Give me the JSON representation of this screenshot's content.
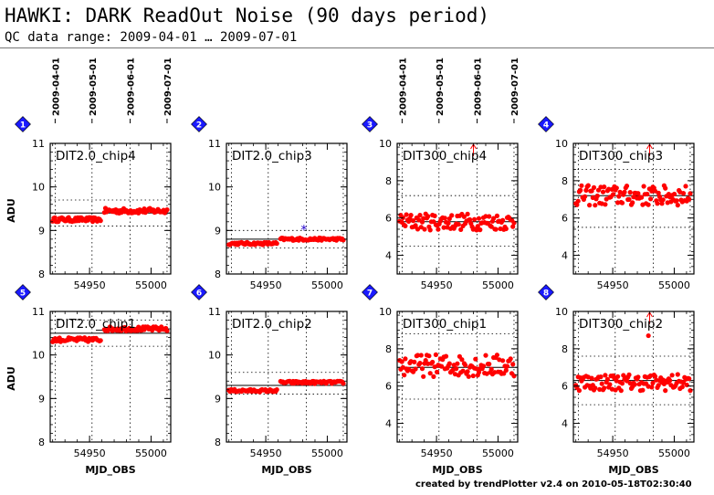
{
  "header": {
    "title": "HAWKI: DARK ReadOut Noise (90 days period)",
    "subtitle": "QC data range: 2009-04-01 … 2009-07-01"
  },
  "footer": "created by trendPlotter v2.4 on 2010-05-18T02:30:40",
  "colors": {
    "data": "#ff0000",
    "outlier": "#2200cc",
    "badge": "#1a1aff",
    "axis": "#000000"
  },
  "top_dates": [
    "2009-04-01",
    "2009-05-01",
    "2009-06-01",
    "2009-07-01"
  ],
  "chart_data": [
    {
      "type": "scatter",
      "index": "1",
      "title": "DIT2.0_chip4",
      "xlabel": "",
      "ylabel": "ADU",
      "xlim": [
        54918,
        55016
      ],
      "ylim": [
        8,
        11
      ],
      "yticks": [
        8,
        9,
        10,
        11
      ],
      "xticks": [
        54950,
        55000
      ],
      "median": 9.4,
      "dotted": [
        9.1,
        9.7
      ],
      "segments": [
        {
          "x0": 54920,
          "x1": 54959,
          "ybase": 9.25,
          "spread": 0.05
        },
        {
          "x0": 54962,
          "x1": 55013,
          "ybase": 9.45,
          "spread": 0.06
        }
      ],
      "outliers": [],
      "arrows": []
    },
    {
      "type": "scatter",
      "index": "2",
      "title": "DIT2.0_chip3",
      "xlabel": "",
      "ylabel": "",
      "xlim": [
        54918,
        55016
      ],
      "ylim": [
        8,
        11
      ],
      "yticks": [
        8,
        9,
        10,
        11
      ],
      "xticks": [
        54950,
        55000
      ],
      "median": 8.8,
      "dotted": [
        8.6,
        9.0
      ],
      "segments": [
        {
          "x0": 54920,
          "x1": 54959,
          "ybase": 8.7,
          "spread": 0.03
        },
        {
          "x0": 54962,
          "x1": 55013,
          "ybase": 8.8,
          "spread": 0.03
        }
      ],
      "outliers": [
        {
          "x": 54981,
          "y": 9.0
        }
      ],
      "arrows": []
    },
    {
      "type": "scatter",
      "index": "3",
      "title": "DIT300_chip4",
      "xlabel": "",
      "ylabel": "",
      "xlim": [
        54918,
        55016
      ],
      "ylim": [
        3,
        10
      ],
      "yticks": [
        4,
        6,
        8,
        10
      ],
      "xticks": [
        54950,
        55000
      ],
      "median": 5.8,
      "dotted": [
        4.5,
        7.2
      ],
      "segments": [
        {
          "x0": 54920,
          "x1": 55013,
          "ybase": 5.8,
          "spread": 0.45
        }
      ],
      "outliers": [],
      "arrows": [
        54980
      ]
    },
    {
      "type": "scatter",
      "index": "4",
      "title": "DIT300_chip3",
      "xlabel": "",
      "ylabel": "",
      "xlim": [
        54918,
        55016
      ],
      "ylim": [
        3,
        10
      ],
      "yticks": [
        4,
        6,
        8,
        10
      ],
      "xticks": [
        54950,
        55000
      ],
      "median": 7.2,
      "dotted": [
        5.5,
        8.6
      ],
      "segments": [
        {
          "x0": 54920,
          "x1": 55013,
          "ybase": 7.2,
          "spread": 0.55
        }
      ],
      "outliers": [],
      "arrows": [
        54980
      ]
    },
    {
      "type": "scatter",
      "index": "5",
      "title": "DIT2.0_chip1",
      "xlabel": "MJD_OBS",
      "ylabel": "ADU",
      "xlim": [
        54918,
        55016
      ],
      "ylim": [
        8,
        11
      ],
      "yticks": [
        8,
        9,
        10,
        11
      ],
      "xticks": [
        54950,
        55000
      ],
      "median": 10.5,
      "dotted": [
        10.2,
        10.8
      ],
      "segments": [
        {
          "x0": 54920,
          "x1": 54959,
          "ybase": 10.35,
          "spread": 0.05
        },
        {
          "x0": 54962,
          "x1": 55013,
          "ybase": 10.6,
          "spread": 0.05
        }
      ],
      "outliers": [],
      "arrows": []
    },
    {
      "type": "scatter",
      "index": "6",
      "title": "DIT2.0_chip2",
      "xlabel": "MJD_OBS",
      "ylabel": "",
      "xlim": [
        54918,
        55016
      ],
      "ylim": [
        8,
        11
      ],
      "yticks": [
        8,
        9,
        10,
        11
      ],
      "xticks": [
        54950,
        55000
      ],
      "median": 9.3,
      "dotted": [
        9.1,
        9.6
      ],
      "segments": [
        {
          "x0": 54920,
          "x1": 54959,
          "ybase": 9.18,
          "spread": 0.03
        },
        {
          "x0": 54962,
          "x1": 55013,
          "ybase": 9.37,
          "spread": 0.03
        }
      ],
      "outliers": [],
      "arrows": []
    },
    {
      "type": "scatter",
      "index": "7",
      "title": "DIT300_chip1",
      "xlabel": "MJD_OBS",
      "ylabel": "",
      "xlim": [
        54918,
        55016
      ],
      "ylim": [
        3,
        10
      ],
      "yticks": [
        4,
        6,
        8,
        10
      ],
      "xticks": [
        54950,
        55000
      ],
      "median": 7.0,
      "dotted": [
        5.3,
        8.8
      ],
      "segments": [
        {
          "x0": 54920,
          "x1": 55013,
          "ybase": 7.1,
          "spread": 0.6
        }
      ],
      "outliers": [],
      "arrows": []
    },
    {
      "type": "scatter",
      "index": "8",
      "title": "DIT300_chip2",
      "xlabel": "MJD_OBS",
      "ylabel": "",
      "xlim": [
        54918,
        55016
      ],
      "ylim": [
        3,
        10
      ],
      "yticks": [
        4,
        6,
        8,
        10
      ],
      "xticks": [
        54950,
        55000
      ],
      "median": 6.3,
      "dotted": [
        5.0,
        7.6
      ],
      "segments": [
        {
          "x0": 54920,
          "x1": 55013,
          "ybase": 6.2,
          "spread": 0.45
        }
      ],
      "outliers": [
        {
          "x": 54979,
          "y": 8.7
        }
      ],
      "arrows": [
        54980
      ]
    }
  ]
}
